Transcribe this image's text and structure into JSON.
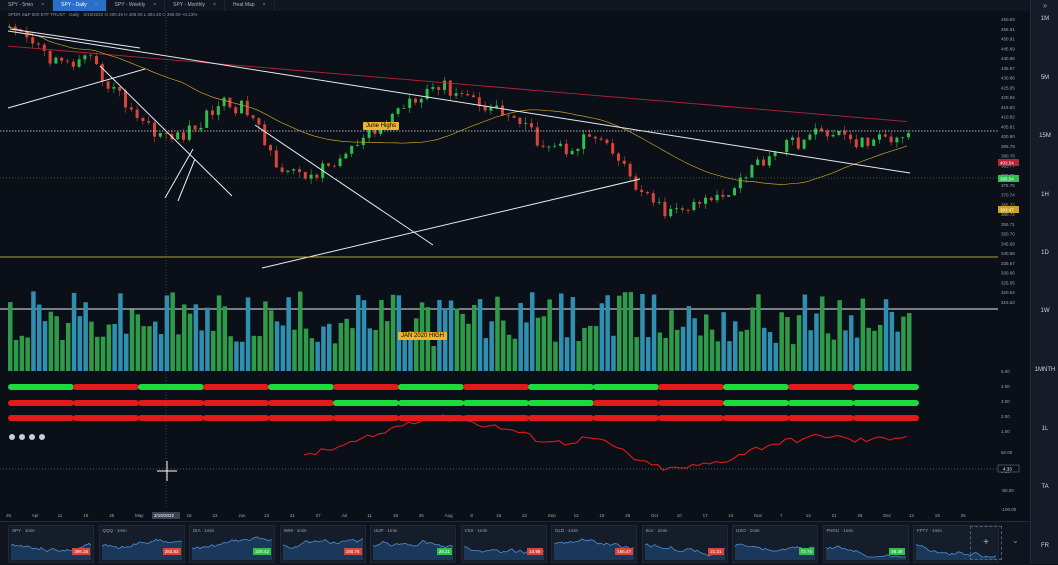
{
  "tabs": [
    {
      "label": "SPY - 5min",
      "active": false
    },
    {
      "label": "SPY - Daily",
      "active": true
    },
    {
      "label": "SPY - Weekly",
      "active": false
    },
    {
      "label": "SPY - Monthly",
      "active": false
    },
    {
      "label": "Heat Map",
      "active": false
    }
  ],
  "header_text": "SPDR S&P 500 ETF TRUST · Daily · 3/19/2022 O 400.49 H 406.59 L 394.40 C 399.09 +0.23%",
  "annotations": {
    "june_highs": "June Highs",
    "jan_high": "JAN 2020 HIGH"
  },
  "timeframes": [
    "1M",
    "5M",
    "15M",
    "1H",
    "1D",
    "1W",
    "1MNTH",
    "1L",
    "TA",
    "FR"
  ],
  "price_axis": [
    "460.93",
    "455.91",
    "450.91",
    "445.89",
    "440.88",
    "435.87",
    "430.86",
    "425.85",
    "420.84",
    "415.83",
    "410.82",
    "405.81",
    "400.80",
    "395.79",
    "390.78",
    "385.77",
    "380.76",
    "375.75",
    "370.74",
    "365.73",
    "360.72",
    "355.71",
    "350.70",
    "345.69",
    "340.68",
    "335.67",
    "330.66",
    "325.65",
    "320.64",
    "315.63"
  ],
  "price_tags": {
    "top": "403.54",
    "green": "395.54",
    "gold": "383.47"
  },
  "rsi_axis": [
    "5.00",
    "4.00",
    "3.00",
    "2.00",
    "1.00",
    "50.00",
    "0.00",
    "-50.00",
    "-100.00"
  ],
  "rsi_value": "4.33",
  "x_axis": [
    "25",
    "Apr",
    "11",
    "18",
    "25",
    "May",
    "9",
    "16",
    "23",
    "Jun",
    "13",
    "21",
    "27",
    "Jul",
    "11",
    "18",
    "25",
    "Aug",
    "8",
    "15",
    "22",
    "Sep",
    "12",
    "19",
    "26",
    "Oct",
    "10",
    "17",
    "24",
    "Nov",
    "7",
    "14",
    "21",
    "28",
    "Dec",
    "12",
    "19",
    "26"
  ],
  "x_cursor_label": "3/19/2022",
  "colors": {
    "up": "#2fbf4f",
    "down": "#d8453a",
    "ma_red": "#b8233a",
    "ma_gold": "#c9a227",
    "accent": "#2a6fc9"
  },
  "tickers": [
    {
      "name": "SPY · 1min",
      "price": "396.16",
      "color": "#d8453a"
    },
    {
      "name": "QQQ · 1min",
      "price": "283.83",
      "color": "#d8453a"
    },
    {
      "name": "DIA · 1min",
      "price": "328.42",
      "color": "#2fbf4f"
    },
    {
      "name": "IWM · 1min",
      "price": "180.76",
      "color": "#d8453a"
    },
    {
      "name": "UUP · 1min",
      "price": "28.21",
      "color": "#2fbf4f"
    },
    {
      "name": "VXX · 1min",
      "price": "14.96",
      "color": "#d8453a"
    },
    {
      "name": "GLD · 1min",
      "price": "166.47",
      "color": "#d8453a"
    },
    {
      "name": "SLV · 1min",
      "price": "21.21",
      "color": "#d8453a"
    },
    {
      "name": "USO · 1min",
      "price": "72.74",
      "color": "#2fbf4f"
    },
    {
      "name": "FNGU · 1min",
      "price": "56.36",
      "color": "#2fbf4f"
    },
    {
      "name": "FFTY · 1min",
      "price": "",
      "color": "#2fbf4f"
    }
  ],
  "add_chart": "+"
}
